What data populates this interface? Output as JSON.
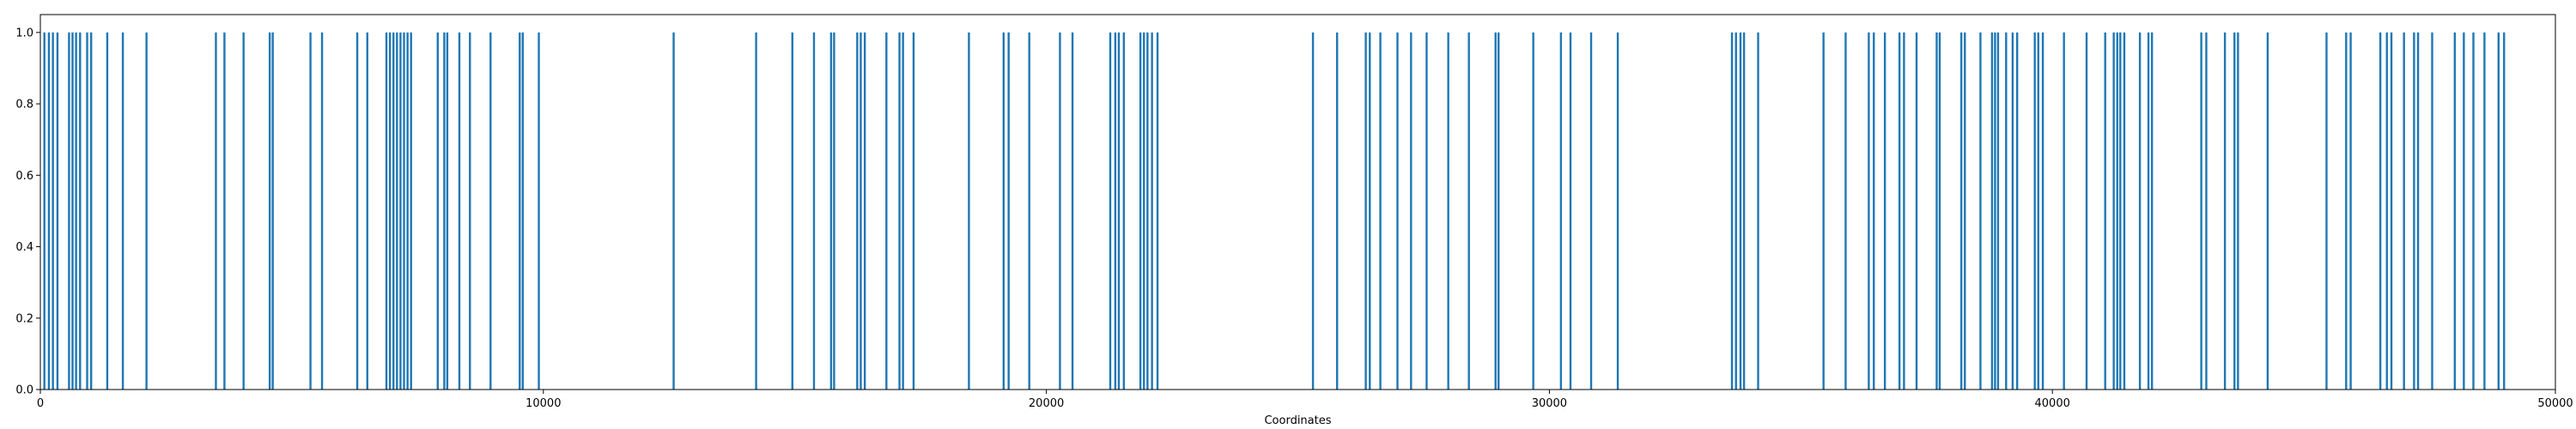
{
  "chart_data": {
    "type": "bar",
    "title": "",
    "xlabel": "Coordinates",
    "ylabel": "",
    "xlim": [
      0,
      50000
    ],
    "ylim": [
      0,
      1.05
    ],
    "grid": false,
    "legend": "none",
    "xticks": [
      0,
      10000,
      20000,
      30000,
      40000,
      50000
    ],
    "yticks": [
      0.0,
      0.2,
      0.4,
      0.6,
      0.8,
      1.0
    ],
    "xtick_labels": [
      "0",
      "10000",
      "20000",
      "30000",
      "40000",
      "50000"
    ],
    "ytick_labels": [
      "0.0",
      "0.2",
      "0.4",
      "0.6",
      "0.8",
      "1.0"
    ],
    "bar_color": "#1f77b4",
    "series": [
      {
        "values": [
          {
            "x": 80,
            "y": 1
          },
          {
            "x": 170,
            "y": 1
          },
          {
            "x": 250,
            "y": 1
          },
          {
            "x": 340,
            "y": 1
          },
          {
            "x": 570,
            "y": 1
          },
          {
            "x": 640,
            "y": 1
          },
          {
            "x": 710,
            "y": 1
          },
          {
            "x": 790,
            "y": 1
          },
          {
            "x": 930,
            "y": 1
          },
          {
            "x": 1010,
            "y": 1
          },
          {
            "x": 1330,
            "y": 1
          },
          {
            "x": 1640,
            "y": 1
          },
          {
            "x": 2110,
            "y": 1
          },
          {
            "x": 3490,
            "y": 1
          },
          {
            "x": 3660,
            "y": 1
          },
          {
            "x": 4040,
            "y": 1
          },
          {
            "x": 4560,
            "y": 1
          },
          {
            "x": 4620,
            "y": 1
          },
          {
            "x": 5370,
            "y": 1
          },
          {
            "x": 5600,
            "y": 1
          },
          {
            "x": 6300,
            "y": 1
          },
          {
            "x": 6500,
            "y": 1
          },
          {
            "x": 6880,
            "y": 1
          },
          {
            "x": 6950,
            "y": 1
          },
          {
            "x": 7020,
            "y": 1
          },
          {
            "x": 7090,
            "y": 1
          },
          {
            "x": 7160,
            "y": 1
          },
          {
            "x": 7230,
            "y": 1
          },
          {
            "x": 7300,
            "y": 1
          },
          {
            "x": 7370,
            "y": 1
          },
          {
            "x": 7900,
            "y": 1
          },
          {
            "x": 8030,
            "y": 1
          },
          {
            "x": 8090,
            "y": 1
          },
          {
            "x": 8330,
            "y": 1
          },
          {
            "x": 8540,
            "y": 1
          },
          {
            "x": 8950,
            "y": 1
          },
          {
            "x": 9530,
            "y": 1
          },
          {
            "x": 9590,
            "y": 1
          },
          {
            "x": 9910,
            "y": 1
          },
          {
            "x": 12590,
            "y": 1
          },
          {
            "x": 14230,
            "y": 1
          },
          {
            "x": 14950,
            "y": 1
          },
          {
            "x": 15380,
            "y": 1
          },
          {
            "x": 15720,
            "y": 1
          },
          {
            "x": 15780,
            "y": 1
          },
          {
            "x": 16240,
            "y": 1
          },
          {
            "x": 16310,
            "y": 1
          },
          {
            "x": 16390,
            "y": 1
          },
          {
            "x": 16820,
            "y": 1
          },
          {
            "x": 17080,
            "y": 1
          },
          {
            "x": 17150,
            "y": 1
          },
          {
            "x": 17360,
            "y": 1
          },
          {
            "x": 18460,
            "y": 1
          },
          {
            "x": 19150,
            "y": 1
          },
          {
            "x": 19250,
            "y": 1
          },
          {
            "x": 19660,
            "y": 1
          },
          {
            "x": 20270,
            "y": 1
          },
          {
            "x": 20520,
            "y": 1
          },
          {
            "x": 21270,
            "y": 1
          },
          {
            "x": 21370,
            "y": 1
          },
          {
            "x": 21440,
            "y": 1
          },
          {
            "x": 21540,
            "y": 1
          },
          {
            "x": 21870,
            "y": 1
          },
          {
            "x": 21940,
            "y": 1
          },
          {
            "x": 22010,
            "y": 1
          },
          {
            "x": 22100,
            "y": 1
          },
          {
            "x": 22210,
            "y": 1
          },
          {
            "x": 25300,
            "y": 1
          },
          {
            "x": 25780,
            "y": 1
          },
          {
            "x": 26350,
            "y": 1
          },
          {
            "x": 26430,
            "y": 1
          },
          {
            "x": 26640,
            "y": 1
          },
          {
            "x": 26980,
            "y": 1
          },
          {
            "x": 27250,
            "y": 1
          },
          {
            "x": 27560,
            "y": 1
          },
          {
            "x": 27990,
            "y": 1
          },
          {
            "x": 28400,
            "y": 1
          },
          {
            "x": 28930,
            "y": 1
          },
          {
            "x": 28990,
            "y": 1
          },
          {
            "x": 29680,
            "y": 1
          },
          {
            "x": 30230,
            "y": 1
          },
          {
            "x": 30420,
            "y": 1
          },
          {
            "x": 30830,
            "y": 1
          },
          {
            "x": 31360,
            "y": 1
          },
          {
            "x": 33630,
            "y": 1
          },
          {
            "x": 33710,
            "y": 1
          },
          {
            "x": 33800,
            "y": 1
          },
          {
            "x": 33870,
            "y": 1
          },
          {
            "x": 34150,
            "y": 1
          },
          {
            "x": 35450,
            "y": 1
          },
          {
            "x": 35890,
            "y": 1
          },
          {
            "x": 36350,
            "y": 1
          },
          {
            "x": 36450,
            "y": 1
          },
          {
            "x": 36670,
            "y": 1
          },
          {
            "x": 36960,
            "y": 1
          },
          {
            "x": 37050,
            "y": 1
          },
          {
            "x": 37300,
            "y": 1
          },
          {
            "x": 37700,
            "y": 1
          },
          {
            "x": 37760,
            "y": 1
          },
          {
            "x": 38190,
            "y": 1
          },
          {
            "x": 38260,
            "y": 1
          },
          {
            "x": 38570,
            "y": 1
          },
          {
            "x": 38800,
            "y": 1
          },
          {
            "x": 38860,
            "y": 1
          },
          {
            "x": 38920,
            "y": 1
          },
          {
            "x": 39080,
            "y": 1
          },
          {
            "x": 39210,
            "y": 1
          },
          {
            "x": 39300,
            "y": 1
          },
          {
            "x": 39650,
            "y": 1
          },
          {
            "x": 39720,
            "y": 1
          },
          {
            "x": 39810,
            "y": 1
          },
          {
            "x": 40230,
            "y": 1
          },
          {
            "x": 40680,
            "y": 1
          },
          {
            "x": 41050,
            "y": 1
          },
          {
            "x": 41220,
            "y": 1
          },
          {
            "x": 41290,
            "y": 1
          },
          {
            "x": 41350,
            "y": 1
          },
          {
            "x": 41430,
            "y": 1
          },
          {
            "x": 41740,
            "y": 1
          },
          {
            "x": 41910,
            "y": 1
          },
          {
            "x": 41980,
            "y": 1
          },
          {
            "x": 42960,
            "y": 1
          },
          {
            "x": 43060,
            "y": 1
          },
          {
            "x": 43430,
            "y": 1
          },
          {
            "x": 43620,
            "y": 1
          },
          {
            "x": 43690,
            "y": 1
          },
          {
            "x": 44280,
            "y": 1
          },
          {
            "x": 45450,
            "y": 1
          },
          {
            "x": 45840,
            "y": 1
          },
          {
            "x": 45930,
            "y": 1
          },
          {
            "x": 46520,
            "y": 1
          },
          {
            "x": 46650,
            "y": 1
          },
          {
            "x": 46740,
            "y": 1
          },
          {
            "x": 46990,
            "y": 1
          },
          {
            "x": 47190,
            "y": 1
          },
          {
            "x": 47270,
            "y": 1
          },
          {
            "x": 47550,
            "y": 1
          },
          {
            "x": 48000,
            "y": 1
          },
          {
            "x": 48180,
            "y": 1
          },
          {
            "x": 48370,
            "y": 1
          },
          {
            "x": 48590,
            "y": 1
          },
          {
            "x": 48870,
            "y": 1
          },
          {
            "x": 48980,
            "y": 1
          }
        ]
      }
    ]
  }
}
